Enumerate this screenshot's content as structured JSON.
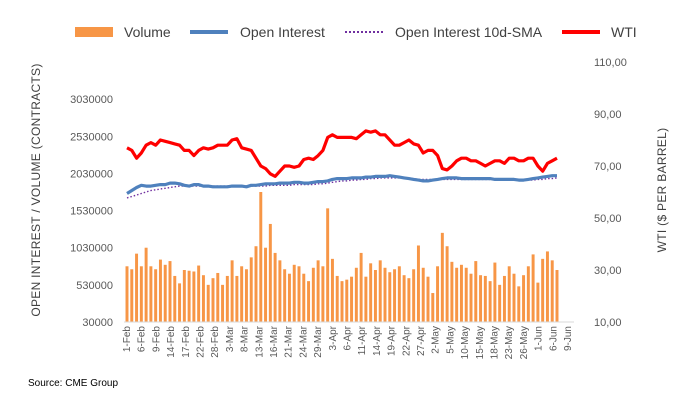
{
  "chart_data": {
    "type": "bar+line",
    "legend": [
      "Volume",
      "Open Interest",
      "Open Interest 10d-SMA",
      "WTI"
    ],
    "legend_position": "top",
    "colors": {
      "volume": "#F79646",
      "open_interest": "#4F81BD",
      "open_interest_sma": "#7030A0",
      "wti": "#FF0000"
    },
    "left_axis": {
      "label": "OPEN INTEREST / VOLUME (CONTRACTS)",
      "range": [
        30000,
        3530000
      ],
      "ticks": [
        "30000",
        "530000",
        "1030000",
        "1530000",
        "2030000",
        "2530000",
        "3030000"
      ],
      "tick_values": [
        30000,
        530000,
        1030000,
        1530000,
        2030000,
        2530000,
        3030000
      ]
    },
    "right_axis": {
      "label": "WTI ($ PER BARREL)",
      "range": [
        10,
        110
      ],
      "ticks": [
        "10,00",
        "30,00",
        "50,00",
        "70,00",
        "90,00",
        "110,00"
      ],
      "tick_values": [
        10,
        30,
        50,
        70,
        90,
        110
      ]
    },
    "x_tick_labels": [
      "1-Feb",
      "6-Feb",
      "9-Feb",
      "14-Feb",
      "17-Feb",
      "22-Feb",
      "28-Feb",
      "3-Mar",
      "8-Mar",
      "13-Mar",
      "16-Mar",
      "21-Mar",
      "24-Mar",
      "29-Mar",
      "3-Apr",
      "6-Apr",
      "11-Apr",
      "14-Apr",
      "19-Apr",
      "22-Apr",
      "27-Apr",
      "2-May",
      "5-May",
      "10-May",
      "15-May",
      "18-May",
      "23-May",
      "26-May",
      "1-Jun",
      "6-Jun",
      "9-Jun"
    ],
    "volume": [
      780000,
      740000,
      950000,
      780000,
      1030000,
      780000,
      740000,
      870000,
      800000,
      850000,
      650000,
      550000,
      730000,
      720000,
      710000,
      790000,
      660000,
      530000,
      620000,
      690000,
      530000,
      650000,
      860000,
      650000,
      780000,
      740000,
      900000,
      1050000,
      1780000,
      1030000,
      1350000,
      960000,
      860000,
      740000,
      680000,
      800000,
      780000,
      680000,
      580000,
      760000,
      860000,
      780000,
      1560000,
      880000,
      650000,
      580000,
      600000,
      640000,
      760000,
      960000,
      640000,
      820000,
      730000,
      860000,
      760000,
      700000,
      740000,
      780000,
      660000,
      620000,
      740000,
      1060000,
      760000,
      640000,
      420000,
      780000,
      1230000,
      1050000,
      840000,
      760000,
      800000,
      760000,
      680000,
      850000,
      660000,
      650000,
      580000,
      830000,
      530000,
      650000,
      780000,
      680000,
      510000,
      660000,
      780000,
      940000,
      560000,
      880000,
      980000,
      860000,
      730000
    ],
    "open_interest": [
      1760000,
      1800000,
      1840000,
      1870000,
      1860000,
      1860000,
      1870000,
      1880000,
      1880000,
      1900000,
      1900000,
      1890000,
      1870000,
      1860000,
      1880000,
      1880000,
      1860000,
      1860000,
      1850000,
      1850000,
      1850000,
      1850000,
      1860000,
      1860000,
      1860000,
      1850000,
      1870000,
      1870000,
      1880000,
      1890000,
      1890000,
      1890000,
      1900000,
      1900000,
      1900000,
      1910000,
      1910000,
      1900000,
      1900000,
      1910000,
      1920000,
      1920000,
      1930000,
      1950000,
      1960000,
      1960000,
      1960000,
      1970000,
      1970000,
      1970000,
      1980000,
      1980000,
      1990000,
      1990000,
      1990000,
      2000000,
      1990000,
      1980000,
      1970000,
      1960000,
      1950000,
      1940000,
      1930000,
      1930000,
      1940000,
      1950000,
      1960000,
      1970000,
      1970000,
      1970000,
      1960000,
      1960000,
      1960000,
      1960000,
      1960000,
      1960000,
      1960000,
      1950000,
      1950000,
      1950000,
      1950000,
      1950000,
      1940000,
      1940000,
      1950000,
      1960000,
      1970000,
      1980000,
      1990000,
      2000000,
      2000000
    ],
    "open_interest_sma": [
      1700000,
      1720000,
      1740000,
      1760000,
      1780000,
      1800000,
      1810000,
      1820000,
      1830000,
      1840000,
      1850000,
      1860000,
      1860000,
      1860000,
      1860000,
      1860000,
      1860000,
      1860000,
      1860000,
      1860000,
      1860000,
      1860000,
      1860000,
      1860000,
      1860000,
      1860000,
      1860000,
      1860000,
      1860000,
      1860000,
      1870000,
      1870000,
      1870000,
      1870000,
      1870000,
      1880000,
      1880000,
      1880000,
      1880000,
      1880000,
      1890000,
      1890000,
      1900000,
      1910000,
      1920000,
      1930000,
      1930000,
      1940000,
      1940000,
      1950000,
      1950000,
      1960000,
      1960000,
      1970000,
      1970000,
      1970000,
      1970000,
      1970000,
      1970000,
      1960000,
      1960000,
      1950000,
      1950000,
      1950000,
      1950000,
      1950000,
      1950000,
      1950000,
      1950000,
      1950000,
      1950000,
      1950000,
      1950000,
      1950000,
      1950000,
      1950000,
      1950000,
      1950000,
      1950000,
      1950000,
      1950000,
      1950000,
      1950000,
      1940000,
      1940000,
      1940000,
      1950000,
      1950000,
      1960000,
      1960000,
      1970000
    ],
    "wti": [
      77,
      76,
      73,
      75,
      78,
      79,
      78,
      80,
      79.5,
      79,
      78.5,
      78,
      76,
      76,
      74,
      76,
      77,
      76.5,
      77,
      78,
      78,
      78,
      80,
      80.5,
      77,
      76.5,
      76,
      73,
      70,
      69,
      67,
      66,
      68,
      70,
      70,
      69.5,
      70,
      72.5,
      73,
      72.5,
      74,
      76,
      81,
      82,
      81,
      81,
      81,
      81,
      80.5,
      82,
      83.5,
      83,
      83.5,
      82,
      82,
      80,
      78,
      78,
      79,
      80,
      78.5,
      78,
      75,
      76,
      76,
      74,
      69,
      68.5,
      70,
      72,
      73,
      73,
      72,
      72,
      71,
      70,
      71,
      72,
      72,
      71,
      73,
      73,
      72,
      72,
      73,
      73,
      70,
      68,
      71,
      72,
      73
    ]
  },
  "source": "Source: CME Group"
}
